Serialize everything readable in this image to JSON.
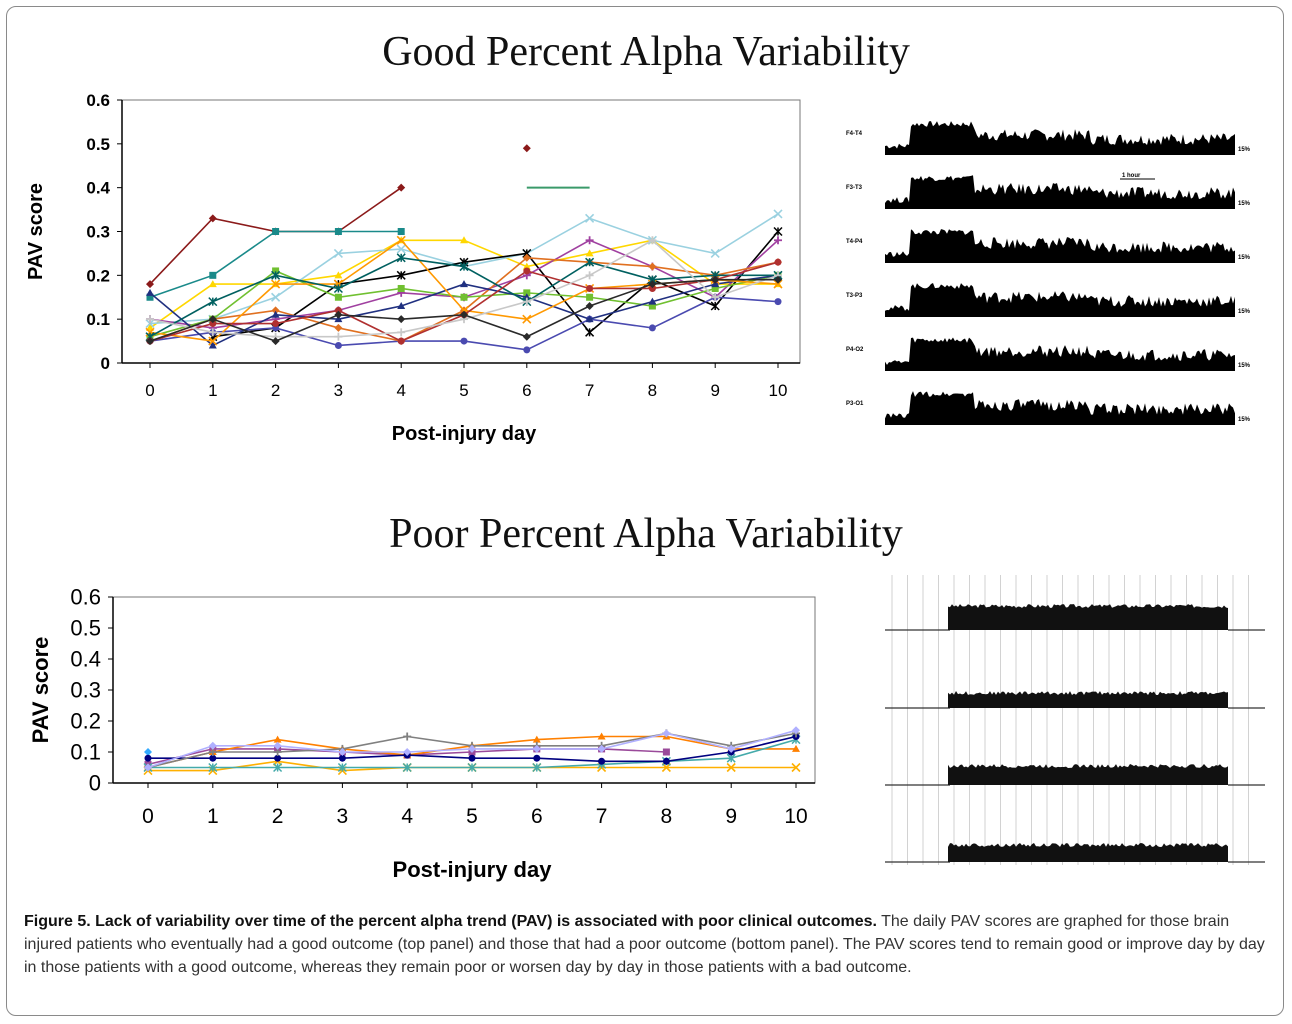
{
  "figure": {
    "title_top": "Good Percent Alpha Variability",
    "title_bottom": "Poor Percent Alpha Variability",
    "caption_bold": "Figure 5. Lack of variability over time of the percent alpha trend (PAV) is associated with poor clinical outcomes.",
    "caption_text": " The daily PAV scores are graphed for those brain injured patients who eventually had a good outcome (top panel) and those that had a poor outcome (bottom panel). The PAV scores tend to remain good or improve day by day in those patients with a good outcome, whereas they remain poor or worsen day by day in those patients with a bad outcome."
  },
  "eeg_top": {
    "channels": [
      "F4-T4",
      "F3-T3",
      "T4-P4",
      "T3-P3",
      "P4-O2",
      "P3-O1"
    ],
    "right_label": "15%",
    "scale_label": "1 hour"
  },
  "chart_data": [
    {
      "type": "line",
      "title": "Good Percent Alpha Variability",
      "xlabel": "Post-injury day",
      "ylabel": "PAV score",
      "x": [
        0,
        1,
        2,
        3,
        4,
        5,
        6,
        7,
        8,
        9,
        10
      ],
      "xlim": [
        0,
        10
      ],
      "ylim": [
        0,
        0.6
      ],
      "yticks": [
        "0",
        "0.1",
        "0.2",
        "0.3",
        "0.4",
        "0.5",
        "0.6"
      ],
      "grid": false,
      "legend": "none",
      "series": [
        {
          "color": "#8b1a1a",
          "values": [
            0.18,
            0.33,
            0.3,
            0.3,
            0.4,
            null,
            0.49,
            null,
            null,
            null,
            null
          ]
        },
        {
          "color": "#1a8a8a",
          "values": [
            0.15,
            0.2,
            0.3,
            0.3,
            0.3,
            null,
            null,
            null,
            null,
            null,
            null
          ]
        },
        {
          "color": "#ffd700",
          "values": [
            0.08,
            0.18,
            0.18,
            0.2,
            0.28,
            0.28,
            0.22,
            0.25,
            0.28,
            0.18,
            0.18
          ]
        },
        {
          "color": "#9ad1e0",
          "values": [
            0.09,
            0.1,
            0.15,
            0.25,
            0.26,
            0.22,
            0.25,
            0.33,
            0.28,
            0.25,
            0.34
          ]
        },
        {
          "color": "#000000",
          "values": [
            null,
            0.06,
            0.08,
            0.18,
            0.2,
            0.23,
            0.25,
            0.07,
            0.19,
            0.13,
            0.3
          ]
        },
        {
          "color": "#4a4ab0",
          "values": [
            0.05,
            0.07,
            0.08,
            0.04,
            0.05,
            0.05,
            0.03,
            0.1,
            0.08,
            0.15,
            0.14
          ]
        },
        {
          "color": "#a040a0",
          "values": [
            0.1,
            0.08,
            0.1,
            0.12,
            0.16,
            0.15,
            0.2,
            0.28,
            0.22,
            0.15,
            0.28
          ]
        },
        {
          "color": "#e07020",
          "values": [
            0.05,
            0.1,
            0.12,
            0.08,
            0.05,
            0.12,
            0.24,
            0.23,
            0.22,
            0.2,
            0.23
          ]
        },
        {
          "color": "#70c030",
          "values": [
            0.06,
            0.1,
            0.21,
            0.15,
            0.17,
            0.15,
            0.16,
            0.15,
            0.13,
            0.17,
            0.2
          ]
        },
        {
          "color": "#203080",
          "values": [
            0.16,
            0.04,
            0.11,
            0.1,
            0.13,
            0.18,
            0.15,
            0.1,
            0.14,
            0.18,
            0.2
          ]
        },
        {
          "color": "#ff9900",
          "values": [
            0.07,
            0.05,
            0.18,
            0.18,
            0.28,
            0.12,
            0.1,
            0.17,
            0.18,
            0.19,
            0.18
          ]
        },
        {
          "color": "#006060",
          "values": [
            0.06,
            0.14,
            0.2,
            0.17,
            0.24,
            0.22,
            0.14,
            0.23,
            0.19,
            0.2,
            0.2
          ]
        },
        {
          "color": "#b03030",
          "values": [
            0.05,
            0.09,
            0.09,
            0.12,
            0.05,
            0.11,
            0.21,
            0.17,
            0.17,
            0.19,
            0.23
          ]
        },
        {
          "color": "#c8c8c8",
          "values": [
            0.1,
            0.07,
            0.06,
            0.06,
            0.07,
            0.1,
            0.14,
            0.2,
            0.28,
            0.15,
            0.2
          ]
        },
        {
          "color": "#2a2a2a",
          "values": [
            0.05,
            0.1,
            0.05,
            0.11,
            0.1,
            0.11,
            0.06,
            0.13,
            0.18,
            0.19,
            0.19
          ]
        }
      ],
      "annotation_segment": {
        "color": "#3a9a6a",
        "x": [
          6,
          7
        ],
        "y": 0.4
      }
    },
    {
      "type": "line",
      "title": "Poor Percent Alpha Variability",
      "xlabel": "Post-injury day",
      "ylabel": "PAV score",
      "x": [
        0,
        1,
        2,
        3,
        4,
        5,
        6,
        7,
        8,
        9,
        10
      ],
      "xlim": [
        0,
        10
      ],
      "ylim": [
        0,
        0.6
      ],
      "yticks": [
        "0",
        "0.1",
        "0.2",
        "0.3",
        "0.4",
        "0.5",
        "0.6"
      ],
      "grid": false,
      "legend": "none",
      "series": [
        {
          "color": "#33aaff",
          "values": [
            0.1,
            null,
            null,
            null,
            null,
            null,
            null,
            null,
            null,
            null,
            null
          ]
        },
        {
          "color": "#9a4a9a",
          "values": [
            0.06,
            0.11,
            0.11,
            0.1,
            0.09,
            0.1,
            0.11,
            0.11,
            0.1,
            null,
            null
          ]
        },
        {
          "color": "#ff8000",
          "values": [
            0.05,
            0.1,
            0.14,
            0.11,
            0.09,
            0.12,
            0.14,
            0.15,
            0.15,
            0.11,
            0.11
          ]
        },
        {
          "color": "#ffb000",
          "values": [
            0.04,
            0.04,
            0.07,
            0.04,
            0.05,
            0.05,
            0.05,
            0.05,
            0.05,
            0.05,
            0.05
          ]
        },
        {
          "color": "#44aaaa",
          "values": [
            0.05,
            0.05,
            0.05,
            0.05,
            0.05,
            0.05,
            0.05,
            0.06,
            0.07,
            0.08,
            0.14
          ]
        },
        {
          "color": "#000080",
          "values": [
            0.08,
            0.08,
            0.08,
            0.08,
            0.09,
            0.08,
            0.08,
            0.07,
            0.07,
            0.1,
            0.15
          ]
        },
        {
          "color": "#808080",
          "values": [
            0.05,
            0.1,
            0.1,
            0.11,
            0.15,
            0.12,
            0.12,
            0.12,
            0.16,
            0.12,
            0.16
          ]
        },
        {
          "color": "#b0b0ff",
          "values": [
            0.05,
            0.12,
            0.12,
            0.1,
            0.1,
            0.11,
            0.11,
            0.11,
            0.16,
            0.11,
            0.17
          ]
        }
      ]
    }
  ]
}
